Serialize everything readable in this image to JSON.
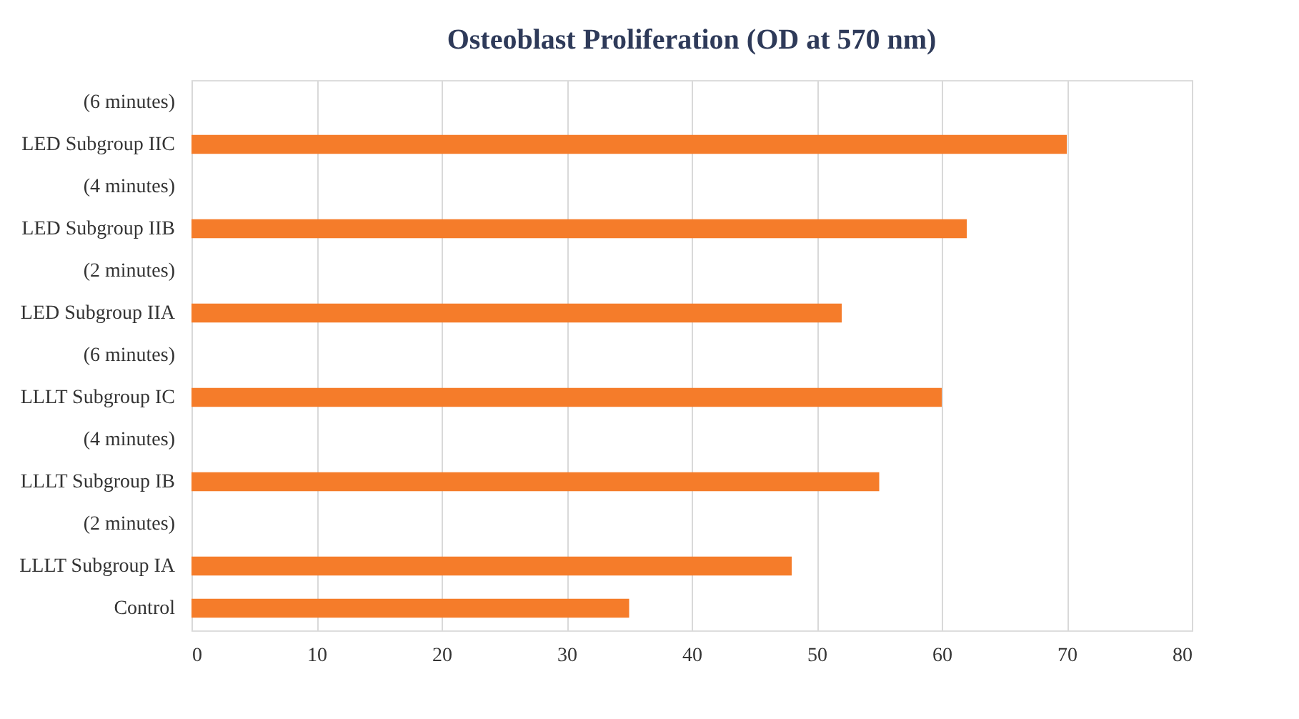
{
  "chart_data": {
    "type": "bar",
    "orientation": "horizontal",
    "title": "Osteoblast Proliferation (OD at 570 nm)",
    "categories": [
      "(6 minutes)",
      "LED Subgroup IIC",
      "(4 minutes)",
      "LED Subgroup IIB",
      "(2 minutes)",
      "LED Subgroup IIA",
      "(6 minutes)",
      "LLLT Subgroup IC",
      "(4 minutes)",
      "LLLT Subgroup IB",
      "(2 minutes)",
      "LLLT Subgroup IA",
      "Control"
    ],
    "values": [
      null,
      70,
      null,
      62,
      null,
      52,
      null,
      60,
      null,
      55,
      null,
      48,
      35
    ],
    "color": "#f57c2a",
    "xlim": [
      0,
      80
    ],
    "xticks": [
      0,
      10,
      20,
      30,
      40,
      50,
      60,
      70,
      80
    ],
    "grid": "x"
  }
}
